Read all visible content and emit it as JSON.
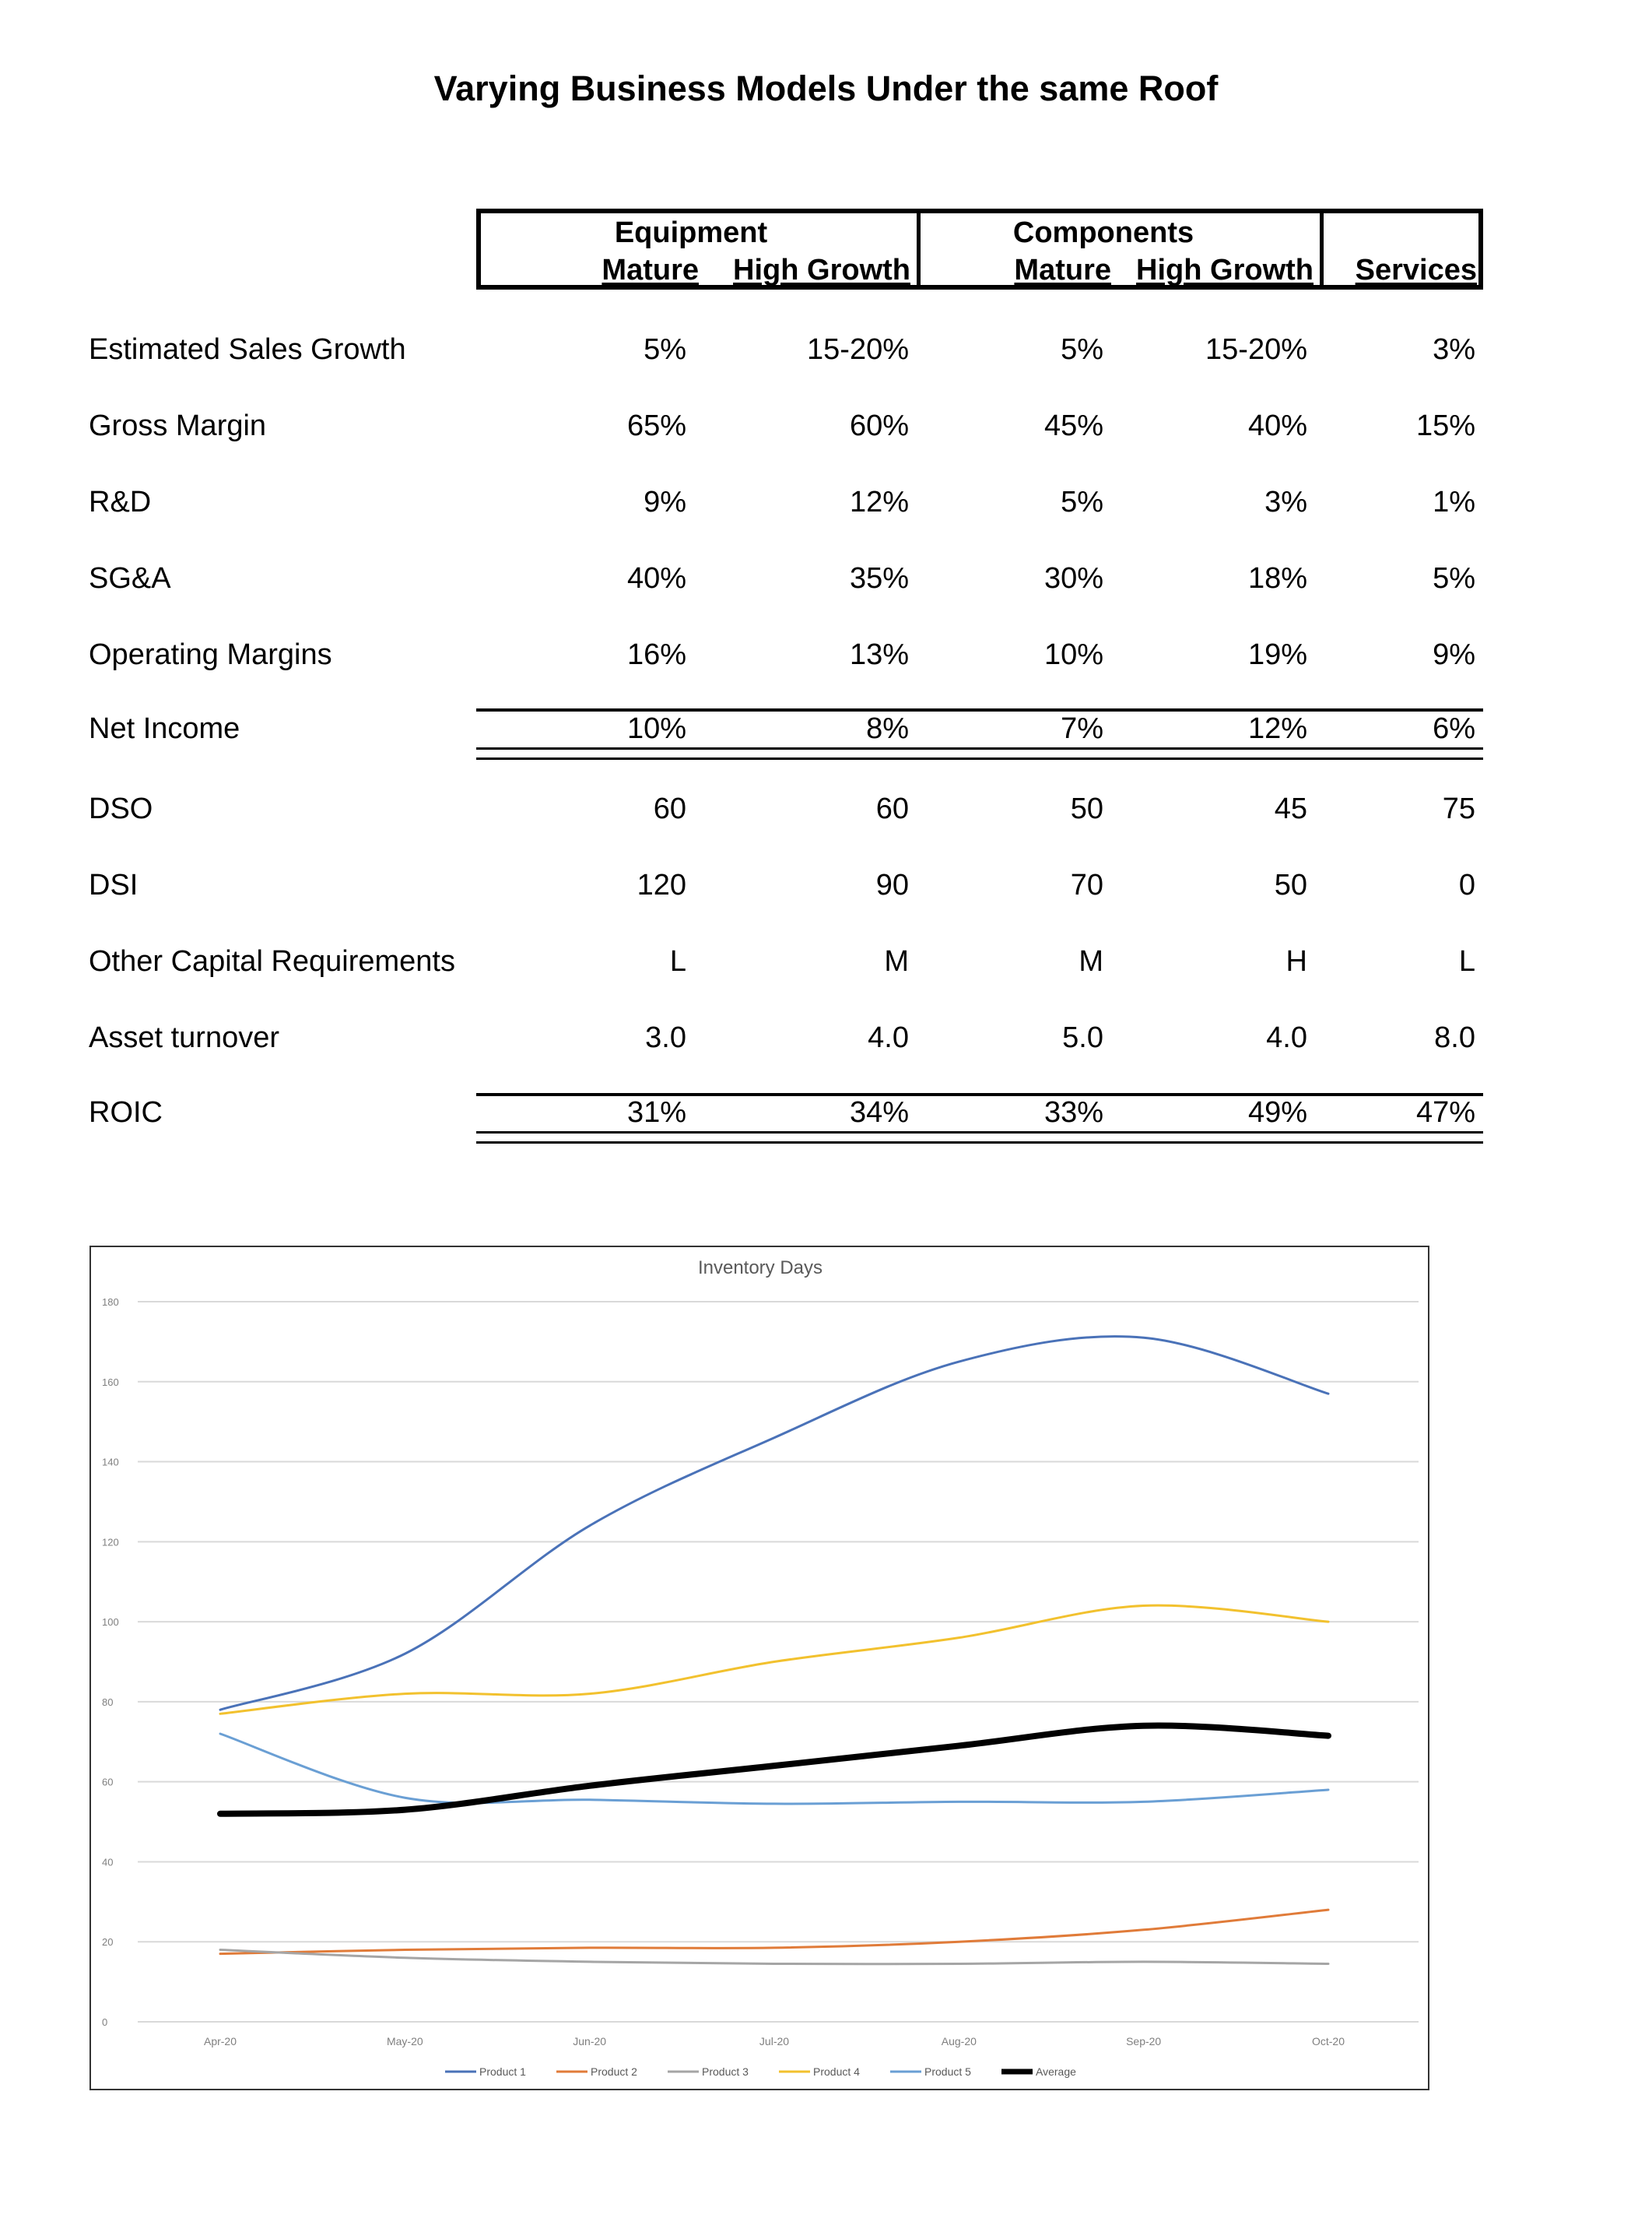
{
  "title": "Varying Business Models Under the same Roof",
  "table": {
    "groups": [
      {
        "name": "Equipment",
        "subs": [
          "Mature",
          "High Growth"
        ]
      },
      {
        "name": "Components",
        "subs": [
          "Mature",
          "High Growth"
        ]
      },
      {
        "name": "",
        "subs": [
          "Services"
        ]
      }
    ],
    "rows": [
      {
        "label": "Estimated Sales Growth",
        "values": [
          "5%",
          "15-20%",
          "5%",
          "15-20%",
          "3%"
        ]
      },
      {
        "label": "Gross Margin",
        "values": [
          "65%",
          "60%",
          "45%",
          "40%",
          "15%"
        ]
      },
      {
        "label": "R&D",
        "values": [
          "9%",
          "12%",
          "5%",
          "3%",
          "1%"
        ]
      },
      {
        "label": "SG&A",
        "values": [
          "40%",
          "35%",
          "30%",
          "18%",
          "5%"
        ]
      },
      {
        "label": "Operating Margins",
        "values": [
          "16%",
          "13%",
          "10%",
          "19%",
          "9%"
        ]
      },
      {
        "label": "Net Income",
        "values": [
          "10%",
          "8%",
          "7%",
          "12%",
          "6%"
        ]
      },
      {
        "label": "DSO",
        "values": [
          "60",
          "60",
          "50",
          "45",
          "75"
        ]
      },
      {
        "label": "DSI",
        "values": [
          "120",
          "90",
          "70",
          "50",
          "0"
        ]
      },
      {
        "label": "Other Capital Requirements",
        "values": [
          "L",
          "M",
          "M",
          "H",
          "L"
        ]
      },
      {
        "label": "Asset turnover",
        "values": [
          "3.0",
          "4.0",
          "5.0",
          "4.0",
          "8.0"
        ]
      },
      {
        "label": "ROIC",
        "values": [
          "31%",
          "34%",
          "33%",
          "49%",
          "47%"
        ]
      }
    ]
  },
  "chart_data": {
    "type": "line",
    "title": "Inventory Days",
    "categories": [
      "Apr-20",
      "May-20",
      "Jun-20",
      "Jul-20",
      "Aug-20",
      "Sep-20",
      "Oct-20"
    ],
    "ylim": [
      0,
      180
    ],
    "yticks": [
      0,
      20,
      40,
      60,
      80,
      100,
      120,
      140,
      160,
      180
    ],
    "grid": true,
    "legend_position": "bottom",
    "series": [
      {
        "name": "Product 1",
        "color": "#4a72b8",
        "values": [
          78,
          92,
          124,
          146,
          165,
          171,
          157
        ]
      },
      {
        "name": "Product 2",
        "color": "#e07b39",
        "values": [
          17,
          18,
          18.5,
          18.5,
          20,
          23,
          28
        ]
      },
      {
        "name": "Product 3",
        "color": "#a5a5a5",
        "values": [
          18,
          16,
          15,
          14.5,
          14.5,
          15,
          14.5
        ]
      },
      {
        "name": "Product 4",
        "color": "#f2c12e",
        "values": [
          77,
          82,
          82,
          90,
          96,
          104,
          100
        ]
      },
      {
        "name": "Product 5",
        "color": "#6a9fd4",
        "values": [
          72,
          56,
          55.5,
          54.5,
          55,
          55,
          58
        ]
      },
      {
        "name": "Average",
        "color": "#000000",
        "values": [
          52,
          53,
          59,
          64,
          69,
          74,
          71.5
        ]
      }
    ]
  }
}
